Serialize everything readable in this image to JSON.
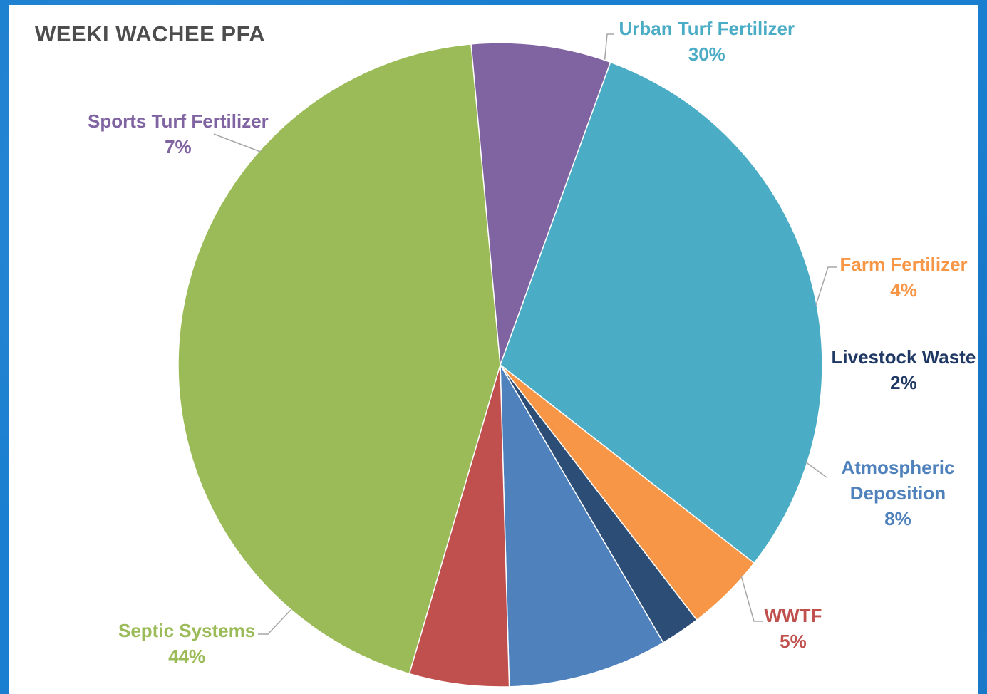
{
  "chart_data": {
    "type": "pie",
    "title": "WEEKI WACHEE PFA",
    "slices": [
      {
        "label": "Urban Turf Fertilizer",
        "value": 30,
        "value_label": "30%",
        "color": "#4bacc6"
      },
      {
        "label": "Farm Fertilizer",
        "value": 4,
        "value_label": "4%",
        "color": "#f79646"
      },
      {
        "label": "Livestock Waste",
        "value": 2,
        "value_label": "2%",
        "color": "#2c4d75"
      },
      {
        "label": "Atmospheric Deposition",
        "label_lines": [
          "Atmospheric",
          "Deposition"
        ],
        "value": 8,
        "value_label": "8%",
        "color": "#4f81bd"
      },
      {
        "label": "WWTF",
        "value": 5,
        "value_label": "5%",
        "color": "#c0504d"
      },
      {
        "label": "Septic Systems",
        "value": 44,
        "value_label": "44%",
        "color": "#9bbb59"
      },
      {
        "label": "Sports Turf Fertilizer",
        "value": 7,
        "value_label": "7%",
        "color": "#8064a2"
      }
    ],
    "label_text_colors": {
      "Urban Turf Fertilizer": "#4bacc6",
      "Farm Fertilizer": "#f79646",
      "Livestock Waste": "#1f3864",
      "Atmospheric Deposition": "#4f81bd",
      "WWTF": "#c0504d",
      "Septic Systems": "#9bbb59",
      "Sports Turf Fertilizer": "#8064a2"
    }
  }
}
